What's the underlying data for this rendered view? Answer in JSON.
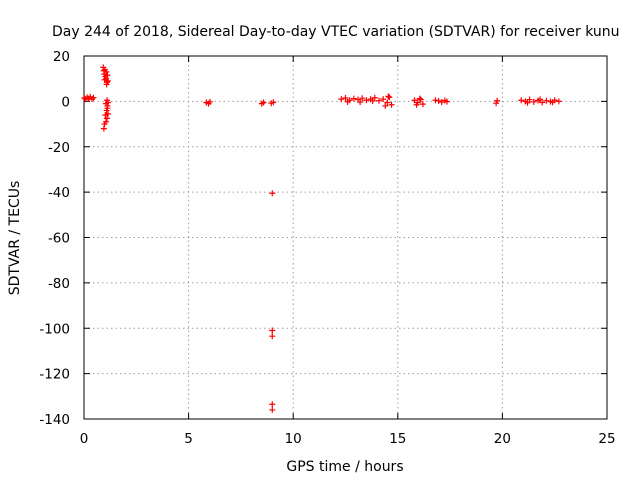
{
  "chart_data": {
    "type": "scatter",
    "title": "Day 244 of 2018, Sidereal Day-to-day VTEC variation (SDTVAR) for receiver kunu",
    "xlabel": "GPS time / hours",
    "ylabel": "SDTVAR / TECUs",
    "xlim": [
      0,
      25
    ],
    "ylim": [
      -140,
      20
    ],
    "xticks": [
      0,
      5,
      10,
      15,
      20,
      25
    ],
    "yticks": [
      20,
      0,
      -20,
      -40,
      -60,
      -80,
      -100,
      -120,
      -140
    ],
    "grid": true,
    "marker": "plus",
    "color": "#ff0000",
    "series": [
      {
        "points": [
          [
            0.02,
            1.5
          ],
          [
            0.08,
            1.0
          ],
          [
            0.15,
            1.8
          ],
          [
            0.22,
            1.2
          ],
          [
            0.3,
            2.0
          ],
          [
            0.38,
            1.0
          ],
          [
            0.45,
            1.6
          ],
          [
            0.92,
            15.0
          ],
          [
            0.95,
            13.5
          ],
          [
            0.97,
            12.0
          ],
          [
            1.0,
            14.0
          ],
          [
            1.02,
            11.0
          ],
          [
            1.05,
            10.0
          ],
          [
            1.07,
            13.0
          ],
          [
            1.1,
            8.5
          ],
          [
            1.12,
            11.5
          ],
          [
            1.15,
            9.0
          ],
          [
            0.98,
            9.5
          ],
          [
            1.08,
            7.5
          ],
          [
            1.15,
            -0.5
          ],
          [
            1.1,
            0.5
          ],
          [
            1.05,
            -1.0
          ],
          [
            1.12,
            -2.0
          ],
          [
            1.08,
            -4.0
          ],
          [
            1.15,
            -5.5
          ],
          [
            1.02,
            -6.0
          ],
          [
            1.1,
            -7.5
          ],
          [
            1.05,
            -9.0
          ],
          [
            0.98,
            -10.0
          ],
          [
            0.95,
            -12.0
          ],
          [
            1.12,
            -3.0
          ],
          [
            5.85,
            -0.5
          ],
          [
            5.95,
            -1.0
          ],
          [
            6.02,
            -0.2
          ],
          [
            8.5,
            -1.0
          ],
          [
            8.58,
            -0.5
          ],
          [
            8.95,
            -0.8
          ],
          [
            9.05,
            -0.4
          ],
          [
            9.0,
            -40.5
          ],
          [
            9.0,
            -101.0
          ],
          [
            9.0,
            -103.5
          ],
          [
            9.0,
            -133.5
          ],
          [
            9.0,
            -136.0
          ],
          [
            12.3,
            1.0
          ],
          [
            12.5,
            1.5
          ],
          [
            12.7,
            0.5
          ],
          [
            12.9,
            1.2
          ],
          [
            13.1,
            0.8
          ],
          [
            13.3,
            1.4
          ],
          [
            13.5,
            0.5
          ],
          [
            13.7,
            1.0
          ],
          [
            13.9,
            1.6
          ],
          [
            14.1,
            0.3
          ],
          [
            14.3,
            1.0
          ],
          [
            14.5,
            -0.5
          ],
          [
            14.6,
            1.8
          ],
          [
            14.7,
            -1.5
          ],
          [
            14.4,
            -2.0
          ],
          [
            14.55,
            2.2
          ],
          [
            12.6,
            -0.2
          ],
          [
            13.2,
            -0.3
          ],
          [
            13.8,
            0.2
          ],
          [
            15.8,
            0.5
          ],
          [
            15.95,
            -0.5
          ],
          [
            16.1,
            0.8
          ],
          [
            16.2,
            -1.2
          ],
          [
            16.05,
            1.2
          ],
          [
            15.9,
            -1.5
          ],
          [
            16.8,
            0.5
          ],
          [
            16.95,
            0.2
          ],
          [
            17.1,
            -0.3
          ],
          [
            17.25,
            0.4
          ],
          [
            17.35,
            -0.1
          ],
          [
            19.7,
            -0.8
          ],
          [
            19.75,
            0.3
          ],
          [
            20.9,
            0.5
          ],
          [
            21.1,
            0.0
          ],
          [
            21.3,
            0.8
          ],
          [
            21.5,
            -0.2
          ],
          [
            21.7,
            0.4
          ],
          [
            21.9,
            -0.5
          ],
          [
            22.1,
            0.3
          ],
          [
            22.3,
            -0.1
          ],
          [
            22.5,
            0.5
          ],
          [
            22.7,
            0.0
          ],
          [
            21.2,
            -0.6
          ],
          [
            21.8,
            0.9
          ],
          [
            22.4,
            -0.4
          ]
        ]
      }
    ]
  }
}
